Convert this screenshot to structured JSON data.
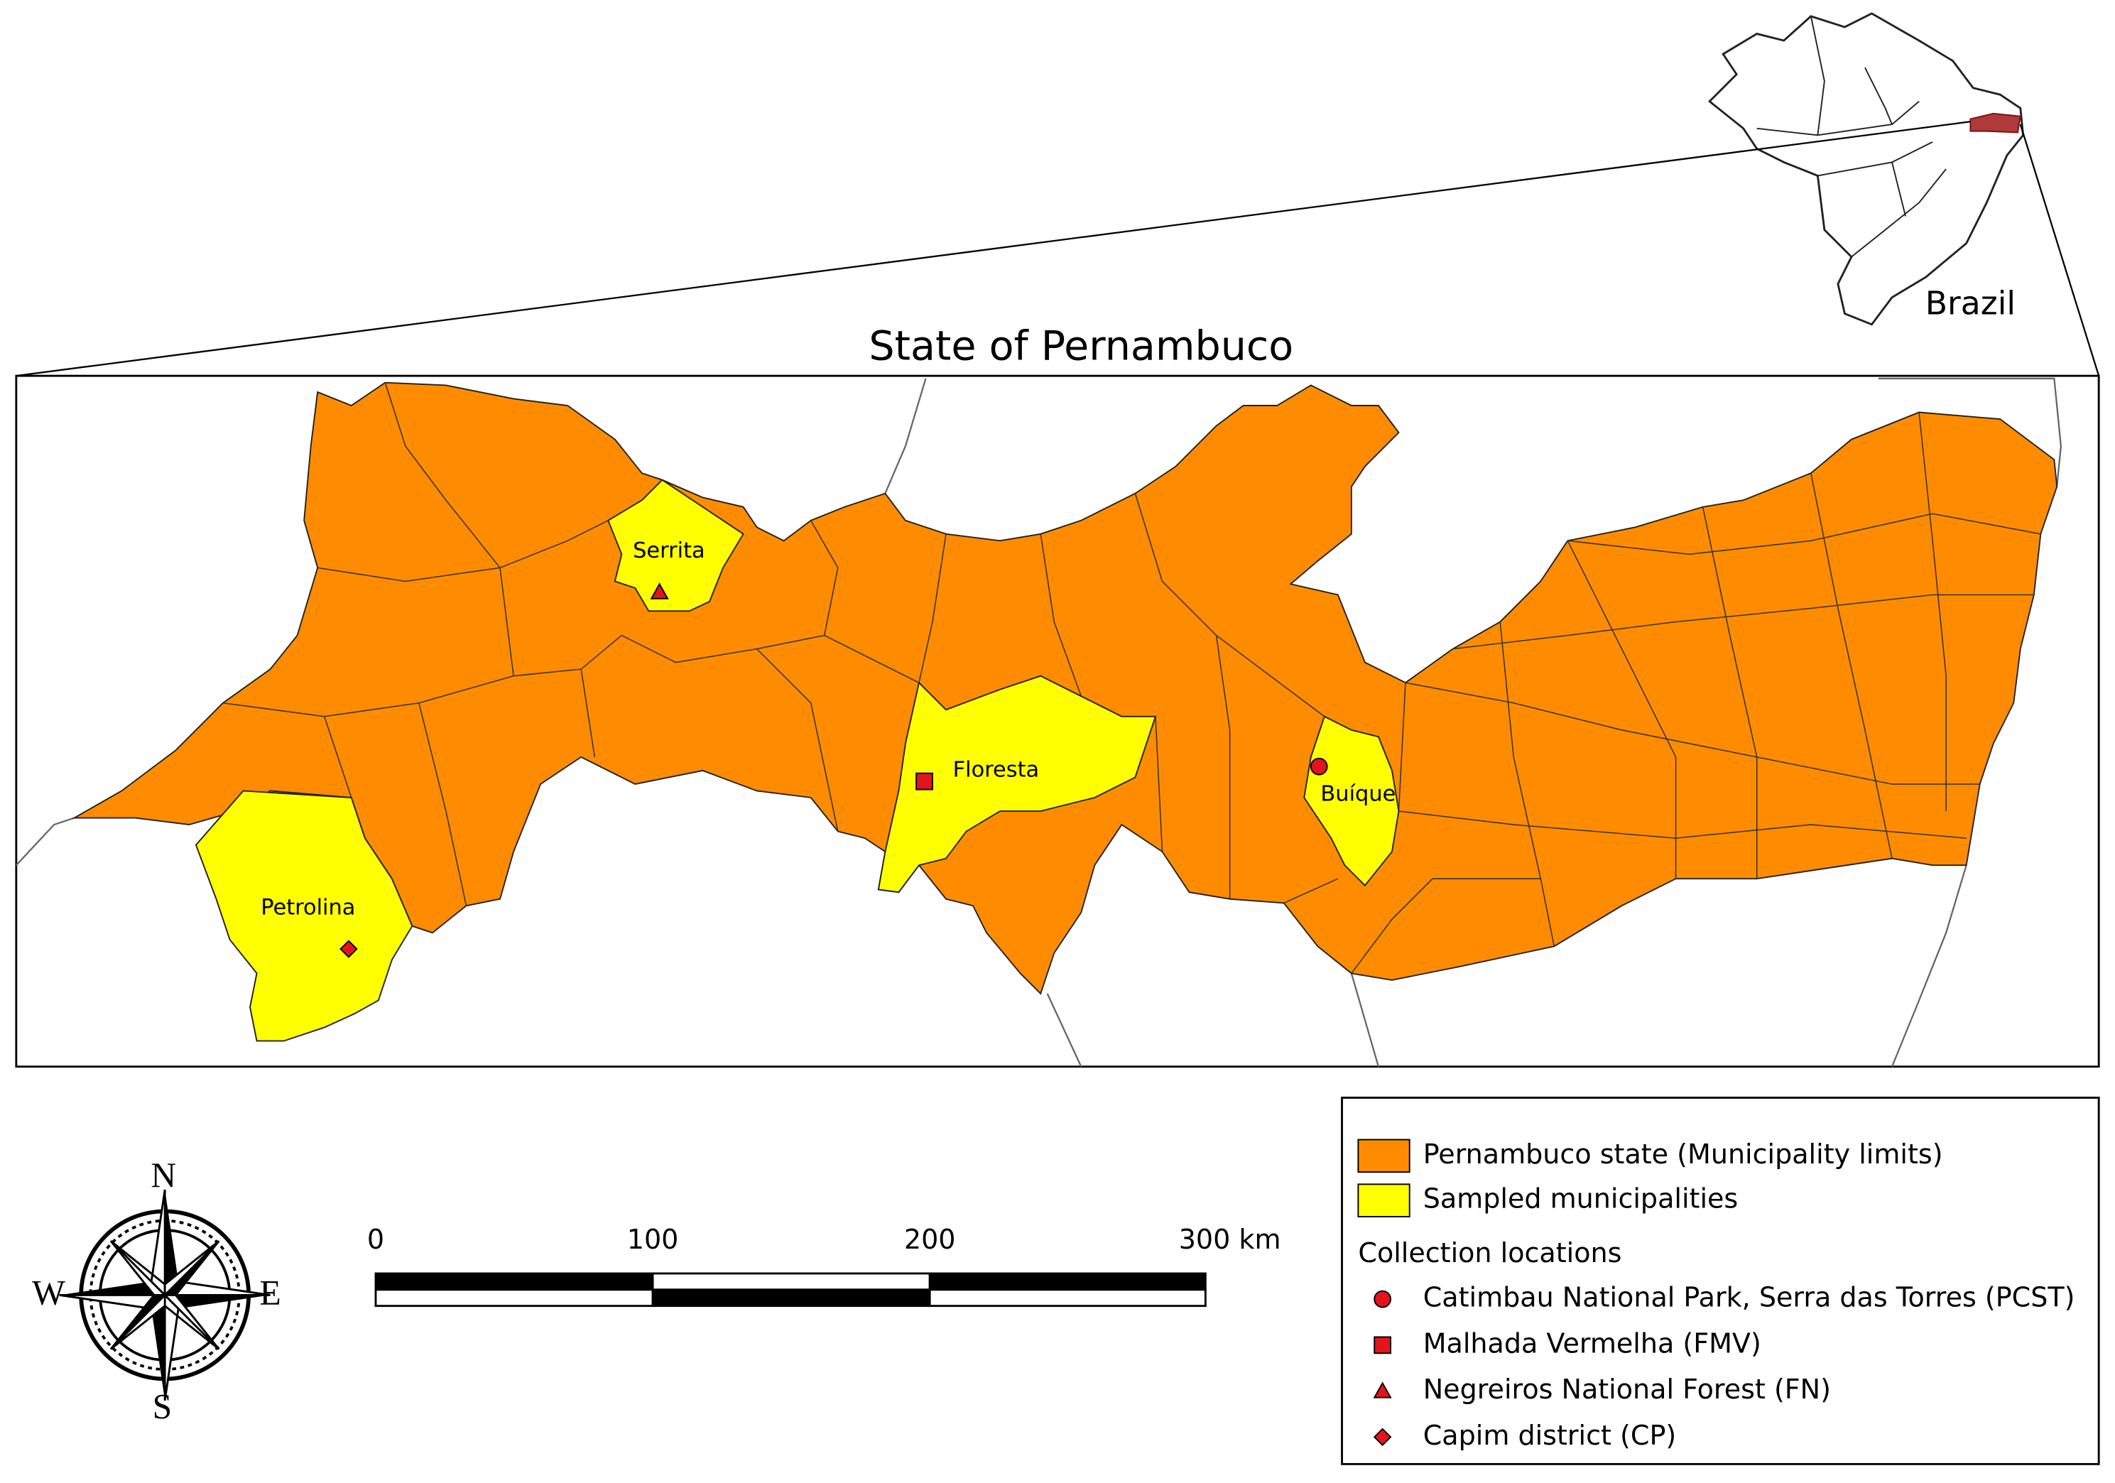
{
  "title": "State of Pernambuco",
  "inset": {
    "label": "Brazil"
  },
  "municipalities": [
    {
      "label": "Serrita"
    },
    {
      "label": "Floresta"
    },
    {
      "label": "Buíque"
    },
    {
      "label": "Petrolina"
    }
  ],
  "compass": {
    "north": "N",
    "south": "S",
    "east": "E",
    "west": "W"
  },
  "scale_bar": {
    "labels": [
      "0",
      "100",
      "200",
      "300 km"
    ]
  },
  "legend": {
    "areas": [
      {
        "label": "Pernambuco state (Municipality limits)",
        "color": "#ff8c00"
      },
      {
        "label": "Sampled municipalities",
        "color": "#ffff00"
      }
    ],
    "points_title": "Collection locations",
    "point_color": "#e3141c",
    "points": [
      {
        "label": "Catimbau National Park, Serra das Torres (PCST)",
        "marker": "circle"
      },
      {
        "label": "Malhada Vermelha (FMV)",
        "marker": "square"
      },
      {
        "label": "Negreiros National Forest (FN)",
        "marker": "triangle"
      },
      {
        "label": "Capim district (CP)",
        "marker": "diamond"
      }
    ]
  }
}
